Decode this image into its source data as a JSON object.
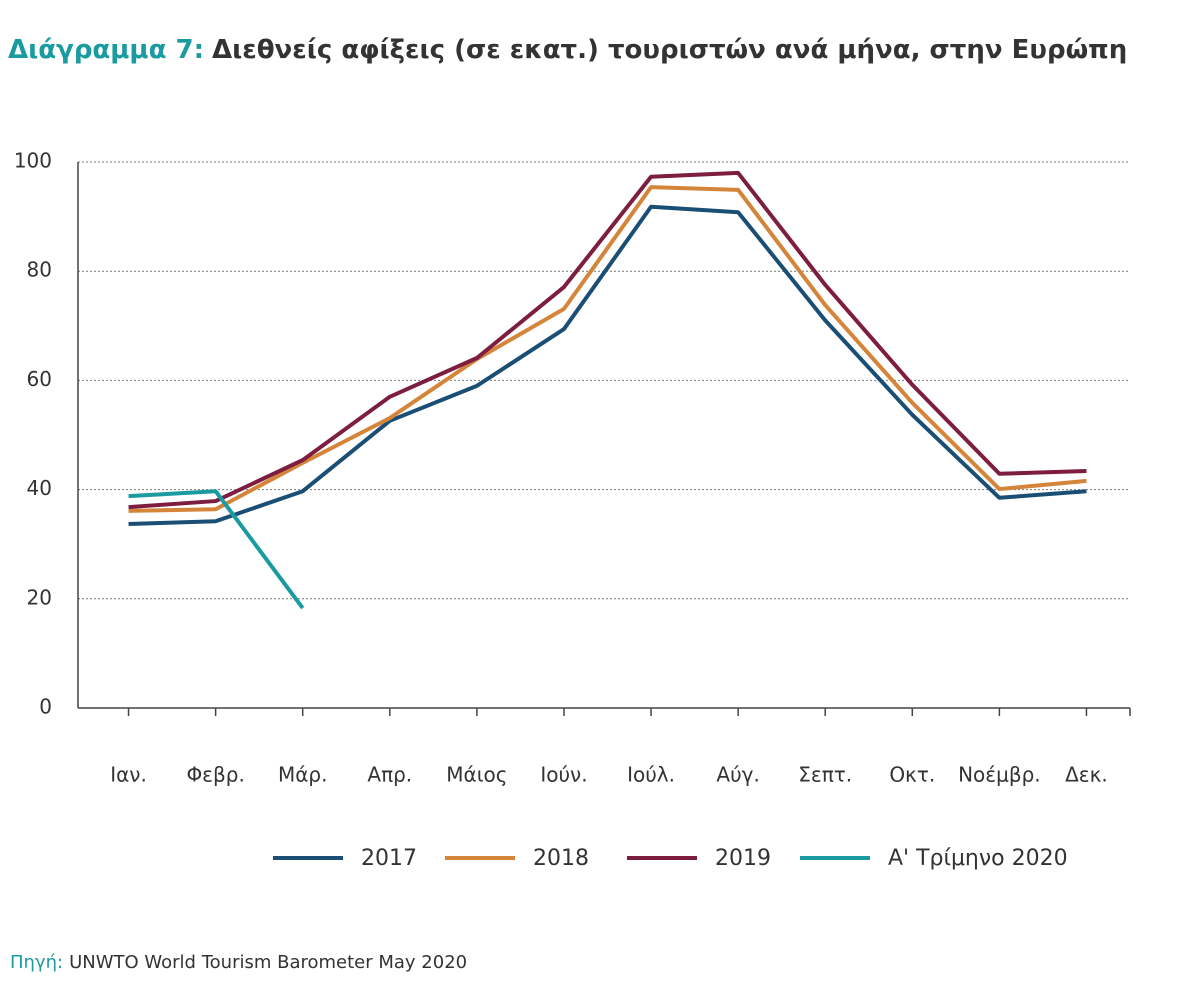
{
  "chart_data": {
    "type": "line",
    "title_label": "Διάγραμμα 7:",
    "title": "Διεθνείς αφίξεις (σε εκατ.) τουριστών ανά μήνα, στην Ευρώπη",
    "source_label": "Πηγή:",
    "source": "UNWTO World Tourism Barometer May 2020",
    "categories": [
      "Ιαν.",
      "Φεβρ.",
      "Μάρ.",
      "Απρ.",
      "Μάιος",
      "Ιούν.",
      "Ιούλ.",
      "Αύγ.",
      "Σεπτ.",
      "Οκτ.",
      "Νοέμβρ.",
      "Δεκ."
    ],
    "series": [
      {
        "name": "2017",
        "color": "#1a4e75",
        "values": [
          33.7,
          34.2,
          39.7,
          52.6,
          59,
          69.4,
          91.8,
          90.8,
          71,
          53.7,
          38.5,
          39.7
        ]
      },
      {
        "name": "2018",
        "color": "#d4853a",
        "values": [
          36.1,
          36.4,
          44.9,
          53.1,
          63.9,
          73.1,
          95.4,
          94.9,
          73.8,
          55.9,
          40.1,
          41.6
        ]
      },
      {
        "name": "2019",
        "color": "#7d1d3f",
        "values": [
          36.8,
          37.9,
          45.4,
          57,
          64.1,
          77.1,
          97.3,
          98,
          77.5,
          59.2,
          42.9,
          43.4
        ]
      },
      {
        "name": "Α' Τρίμηνο 2020",
        "color": "#1a9ba0",
        "values": [
          38.8,
          39.7,
          18.3,
          null,
          null,
          null,
          null,
          null,
          null,
          null,
          null,
          null
        ]
      }
    ],
    "ylim": [
      0,
      100
    ],
    "yticks": [
      0,
      20,
      40,
      60,
      80,
      100
    ],
    "grid": true,
    "legend": "bottom"
  }
}
